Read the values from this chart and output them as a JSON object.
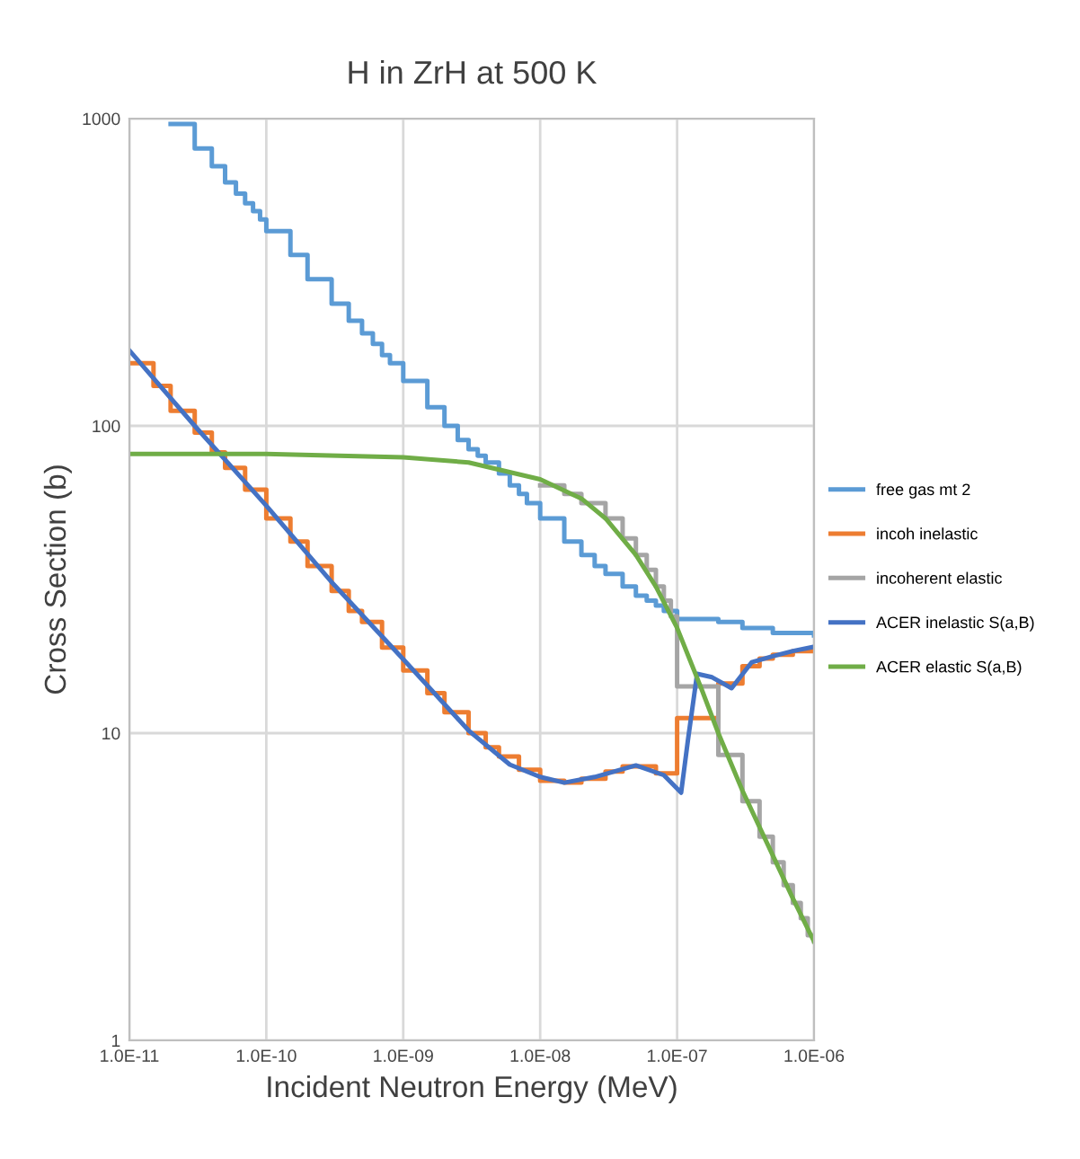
{
  "chart_data": {
    "type": "line",
    "title": "H in ZrH at 500 K",
    "xlabel": "Incident Neutron Energy (MeV)",
    "ylabel": "Cross Section (b)",
    "log": "xy",
    "grid": true,
    "legend": "right",
    "marker": "none",
    "line_style": "solid",
    "xlim": [
      1e-11,
      1e-06
    ],
    "xticks": [
      {
        "value": 1e-11,
        "label": "1.0E-11"
      },
      {
        "value": 1e-10,
        "label": "1.0E-10"
      },
      {
        "value": 1e-09,
        "label": "1.0E-09"
      },
      {
        "value": 1e-08,
        "label": "1.0E-08"
      },
      {
        "value": 1e-07,
        "label": "1.0E-07"
      },
      {
        "value": 1e-06,
        "label": "1.0E-06"
      }
    ],
    "ylim": [
      1,
      1000
    ],
    "yticks": [
      1,
      10,
      100,
      1000
    ],
    "series": [
      {
        "name": "free gas mt 2",
        "type": "step",
        "color": "#5b9bd5",
        "x": [
          2e-11,
          3e-11,
          4e-11,
          5e-11,
          6e-11,
          7e-11,
          8e-11,
          9e-11,
          1e-10,
          1.5e-10,
          2e-10,
          3e-10,
          4e-10,
          5e-10,
          6e-10,
          7e-10,
          8e-10,
          1e-09,
          1.5e-09,
          2e-09,
          2.5e-09,
          3e-09,
          3.5e-09,
          4e-09,
          5e-09,
          6e-09,
          7e-09,
          8e-09,
          1e-08,
          1.5e-08,
          2e-08,
          2.5e-08,
          3e-08,
          4e-08,
          5e-08,
          6e-08,
          7e-08,
          8e-08,
          1e-07,
          2e-07,
          3e-07,
          5e-07,
          1e-06
        ],
        "values": [
          960,
          800,
          700,
          620,
          570,
          530,
          500,
          470,
          430,
          360,
          300,
          250,
          220,
          200,
          185,
          170,
          160,
          140,
          115,
          100,
          90,
          84,
          80,
          76,
          70,
          64,
          60,
          56,
          50,
          42,
          38,
          35,
          33,
          30,
          28,
          27,
          26,
          25,
          23.5,
          23,
          22,
          21.2,
          20.8
        ]
      },
      {
        "name": "incoh inelastic",
        "type": "step",
        "color": "#ed7d31",
        "x": [
          1e-11,
          1.5e-11,
          2e-11,
          3e-11,
          4e-11,
          5e-11,
          7e-11,
          1e-10,
          1.5e-10,
          2e-10,
          3e-10,
          4e-10,
          5e-10,
          7e-10,
          1e-09,
          1.5e-09,
          2e-09,
          3e-09,
          4e-09,
          5e-09,
          7e-09,
          1e-08,
          1.5e-08,
          2e-08,
          3e-08,
          4e-08,
          5e-08,
          7e-08,
          1e-07,
          2e-07,
          3e-07,
          4e-07,
          5e-07,
          7e-07,
          1e-06
        ],
        "values": [
          160,
          135,
          112,
          95,
          82,
          73,
          62,
          50,
          42,
          35,
          29,
          25,
          23,
          19,
          16,
          13.5,
          11.7,
          10,
          9,
          8.4,
          7.6,
          7.0,
          6.9,
          7.1,
          7.5,
          7.8,
          7.8,
          7.4,
          11.2,
          14.5,
          16.5,
          17.5,
          18,
          18.5,
          19
        ]
      },
      {
        "name": "incoherent elastic",
        "type": "step",
        "color": "#a5a5a5",
        "x": [
          1e-08,
          1.5e-08,
          2e-08,
          3e-08,
          4e-08,
          5e-08,
          6e-08,
          7e-08,
          8e-08,
          9e-08,
          1e-07,
          2e-07,
          3e-07,
          4e-07,
          5e-07,
          6e-07,
          7e-07,
          8e-07,
          9e-07,
          1e-06
        ],
        "values": [
          64,
          60,
          56,
          50,
          43,
          38,
          34,
          30,
          27,
          24,
          14.2,
          8.5,
          6,
          4.6,
          3.8,
          3.2,
          2.8,
          2.5,
          2.2,
          2.1
        ]
      },
      {
        "name": "ACER inelastic S(a,B)",
        "color": "#4472c4",
        "x": [
          1e-11,
          3e-11,
          1e-10,
          3e-10,
          1e-09,
          3e-09,
          6e-09,
          1e-08,
          1.5e-08,
          2.5e-08,
          5e-08,
          8e-08,
          1.07e-07,
          1.2e-07,
          1.4e-07,
          1.8e-07,
          2.5e-07,
          3.5e-07,
          5e-07,
          7e-07,
          1e-06
        ],
        "values": [
          176,
          100,
          55,
          31,
          17.4,
          10.2,
          7.9,
          7.2,
          6.9,
          7.2,
          7.85,
          7.3,
          6.4,
          9.5,
          15.6,
          15.2,
          14,
          17,
          17.8,
          18.5,
          19.1
        ]
      },
      {
        "name": "ACER elastic S(a,B)",
        "color": "#70ad47",
        "x": [
          1e-11,
          1e-10,
          1e-09,
          3e-09,
          1e-08,
          2e-08,
          3e-08,
          5e-08,
          7e-08,
          1e-07,
          1.5e-07,
          2e-07,
          3e-07,
          5e-07,
          7e-07,
          1e-06
        ],
        "values": [
          81,
          81,
          79,
          76,
          67,
          58,
          50,
          38,
          30,
          22,
          14,
          10,
          6.5,
          4,
          2.9,
          2.1
        ]
      }
    ]
  }
}
